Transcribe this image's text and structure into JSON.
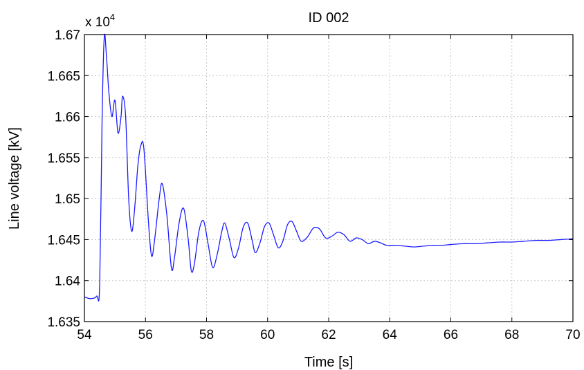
{
  "chart_data": {
    "type": "line",
    "title": "ID 002",
    "xlabel": "Time [s]",
    "ylabel": "Line voltage [kV]",
    "y_multiplier": "x 10",
    "y_multiplier_exp": "4",
    "xlim": [
      54,
      70
    ],
    "ylim": [
      1.635,
      1.67
    ],
    "x_ticks": [
      54,
      56,
      58,
      60,
      62,
      64,
      66,
      68,
      70
    ],
    "x_tick_labels": [
      "54",
      "56",
      "58",
      "60",
      "62",
      "64",
      "66",
      "68",
      "70"
    ],
    "y_ticks": [
      1.635,
      1.64,
      1.645,
      1.65,
      1.655,
      1.66,
      1.665,
      1.67
    ],
    "y_tick_labels": [
      "1.635",
      "1.64",
      "1.645",
      "1.65",
      "1.655",
      "1.66",
      "1.665",
      "1.67"
    ],
    "grid": true,
    "series": [
      {
        "color": "#1a1aff",
        "points": [
          [
            54.0,
            1.638
          ],
          [
            54.2,
            1.6378
          ],
          [
            54.4,
            1.6381
          ],
          [
            54.5,
            1.6395
          ],
          [
            54.58,
            1.66
          ],
          [
            54.65,
            1.6697
          ],
          [
            54.72,
            1.6675
          ],
          [
            54.8,
            1.663
          ],
          [
            54.9,
            1.66
          ],
          [
            55.0,
            1.662
          ],
          [
            55.1,
            1.658
          ],
          [
            55.2,
            1.66
          ],
          [
            55.25,
            1.6625
          ],
          [
            55.35,
            1.66
          ],
          [
            55.45,
            1.65
          ],
          [
            55.55,
            1.646
          ],
          [
            55.65,
            1.649
          ],
          [
            55.75,
            1.654
          ],
          [
            55.85,
            1.6565
          ],
          [
            55.95,
            1.656
          ],
          [
            56.1,
            1.647
          ],
          [
            56.2,
            1.643
          ],
          [
            56.3,
            1.645
          ],
          [
            56.45,
            1.65
          ],
          [
            56.55,
            1.6518
          ],
          [
            56.7,
            1.648
          ],
          [
            56.85,
            1.6415
          ],
          [
            56.95,
            1.6428
          ],
          [
            57.1,
            1.647
          ],
          [
            57.25,
            1.6488
          ],
          [
            57.4,
            1.645
          ],
          [
            57.5,
            1.6412
          ],
          [
            57.6,
            1.642
          ],
          [
            57.75,
            1.646
          ],
          [
            57.9,
            1.6473
          ],
          [
            58.05,
            1.6445
          ],
          [
            58.2,
            1.6416
          ],
          [
            58.35,
            1.6432
          ],
          [
            58.5,
            1.646
          ],
          [
            58.6,
            1.647
          ],
          [
            58.75,
            1.645
          ],
          [
            58.9,
            1.6428
          ],
          [
            59.05,
            1.644
          ],
          [
            59.2,
            1.6465
          ],
          [
            59.35,
            1.647
          ],
          [
            59.5,
            1.6448
          ],
          [
            59.6,
            1.6434
          ],
          [
            59.75,
            1.6446
          ],
          [
            59.9,
            1.6466
          ],
          [
            60.05,
            1.647
          ],
          [
            60.2,
            1.6455
          ],
          [
            60.35,
            1.644
          ],
          [
            60.5,
            1.6448
          ],
          [
            60.65,
            1.6468
          ],
          [
            60.8,
            1.6472
          ],
          [
            60.95,
            1.646
          ],
          [
            61.1,
            1.6448
          ],
          [
            61.3,
            1.6453
          ],
          [
            61.5,
            1.6464
          ],
          [
            61.7,
            1.6463
          ],
          [
            61.9,
            1.6452
          ],
          [
            62.1,
            1.6454
          ],
          [
            62.3,
            1.6459
          ],
          [
            62.5,
            1.6456
          ],
          [
            62.7,
            1.6448
          ],
          [
            62.9,
            1.6452
          ],
          [
            63.1,
            1.645
          ],
          [
            63.3,
            1.6445
          ],
          [
            63.5,
            1.6448
          ],
          [
            63.7,
            1.6446
          ],
          [
            63.9,
            1.6443
          ],
          [
            64.2,
            1.6443
          ],
          [
            64.5,
            1.6442
          ],
          [
            64.8,
            1.6441
          ],
          [
            65.1,
            1.6442
          ],
          [
            65.4,
            1.6443
          ],
          [
            65.7,
            1.6443
          ],
          [
            66.0,
            1.6444
          ],
          [
            66.4,
            1.6445
          ],
          [
            66.8,
            1.6445
          ],
          [
            67.2,
            1.6446
          ],
          [
            67.6,
            1.6447
          ],
          [
            68.0,
            1.6447
          ],
          [
            68.4,
            1.6448
          ],
          [
            68.8,
            1.6449
          ],
          [
            69.2,
            1.6449
          ],
          [
            69.6,
            1.645
          ],
          [
            70.0,
            1.6451
          ]
        ]
      }
    ]
  }
}
